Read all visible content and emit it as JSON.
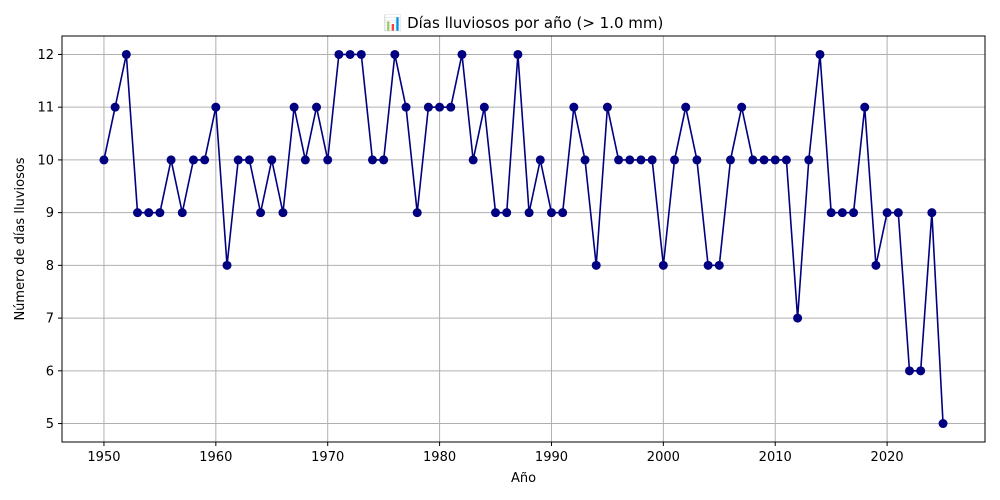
{
  "chart_data": {
    "type": "line",
    "title": "📊 Días lluviosos por año (> 1.0 mm)",
    "xlabel": "Año",
    "ylabel": "Número de días lluviosos",
    "xlim": [
      1946.25,
      2028.75
    ],
    "ylim": [
      4.65,
      12.35
    ],
    "xticks": [
      1950,
      1960,
      1970,
      1980,
      1990,
      2000,
      2010,
      2020
    ],
    "yticks": [
      5,
      6,
      7,
      8,
      9,
      10,
      11,
      12
    ],
    "grid": true,
    "colors": {
      "series": "#000080",
      "grid": "#b0b0b0",
      "axis": "#000000"
    },
    "x": [
      1950,
      1951,
      1952,
      1953,
      1954,
      1955,
      1956,
      1957,
      1958,
      1959,
      1960,
      1961,
      1962,
      1963,
      1964,
      1965,
      1966,
      1967,
      1968,
      1969,
      1970,
      1971,
      1972,
      1973,
      1974,
      1975,
      1976,
      1977,
      1978,
      1979,
      1980,
      1981,
      1982,
      1983,
      1984,
      1985,
      1986,
      1987,
      1988,
      1989,
      1990,
      1991,
      1992,
      1993,
      1994,
      1995,
      1996,
      1997,
      1998,
      1999,
      2000,
      2001,
      2002,
      2003,
      2004,
      2005,
      2006,
      2007,
      2008,
      2009,
      2010,
      2011,
      2012,
      2013,
      2014,
      2015,
      2016,
      2017,
      2018,
      2019,
      2020,
      2021,
      2022,
      2023,
      2024,
      2025
    ],
    "series": [
      {
        "values": [
          10,
          11,
          12,
          9,
          9,
          9,
          10,
          9,
          10,
          10,
          11,
          8,
          10,
          10,
          9,
          10,
          9,
          11,
          10,
          11,
          10,
          12,
          12,
          12,
          10,
          10,
          12,
          11,
          9,
          11,
          11,
          11,
          12,
          10,
          11,
          9,
          9,
          12,
          9,
          10,
          9,
          9,
          11,
          10,
          8,
          11,
          10,
          10,
          10,
          10,
          8,
          10,
          11,
          10,
          8,
          8,
          10,
          11,
          10,
          10,
          10,
          10,
          7,
          10,
          12,
          9,
          9,
          9,
          11,
          8,
          9,
          9,
          6,
          6,
          9,
          5
        ]
      }
    ]
  }
}
